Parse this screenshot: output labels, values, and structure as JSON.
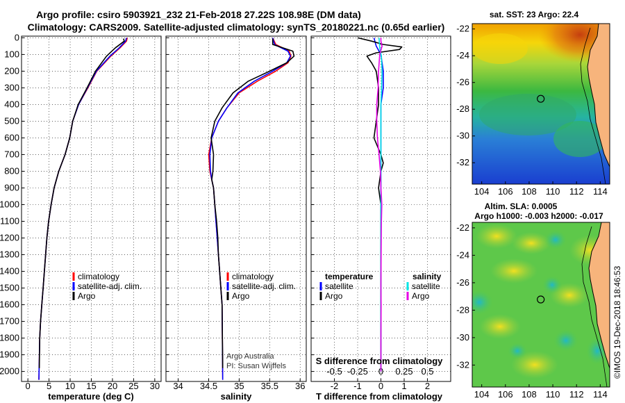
{
  "header": {
    "title_line1": "Argo profile: csiro 5903921_232 21-Feb-2018 27.22S 108.98E (DM data)",
    "title_line2": "Climatology: CARS2009. Satellite-adjusted climatology: synTS_20180221.nc (0.65d earlier)"
  },
  "colors": {
    "climatology": "#ff0000",
    "satellite_adj": "#0000ff",
    "argo": "#000000",
    "satellite_diff": "#00e5e5",
    "argo_salinity_diff": "#e600e6"
  },
  "chart_data": [
    {
      "id": "temperature",
      "type": "line",
      "xlabel": "temperature (deg C)",
      "ylabel": "",
      "xlim": [
        -1.5,
        31.5
      ],
      "ylim": [
        2060,
        -10
      ],
      "xticks": [
        "0",
        "5",
        "10",
        "15",
        "20",
        "25",
        "30"
      ],
      "xtick_values": [
        0,
        5,
        10,
        15,
        20,
        25,
        30
      ],
      "yticks": [
        "0",
        "100",
        "200",
        "300",
        "400",
        "500",
        "600",
        "700",
        "800",
        "900",
        "1000",
        "1100",
        "1200",
        "1300",
        "1400",
        "1500",
        "1600",
        "1700",
        "1800",
        "1900",
        "2000"
      ],
      "ytick_values": [
        0,
        100,
        200,
        300,
        400,
        500,
        600,
        700,
        800,
        900,
        1000,
        1100,
        1200,
        1300,
        1400,
        1500,
        1600,
        1700,
        1800,
        1900,
        2000
      ],
      "grid": true,
      "legend": {
        "placement": "lower-middle",
        "entries": [
          "climatology",
          "satellite-adj. clim.",
          "Argo"
        ]
      },
      "series": [
        {
          "name": "climatology",
          "color": "#ff0000",
          "x": [
            23.5,
            23.3,
            21.8,
            19.6,
            16.3,
            14.2,
            12.0,
            10.6,
            9.9,
            8.8,
            7.3,
            6.2,
            5.5,
            4.9,
            4.5,
            4.2,
            3.9,
            3.6,
            3.3,
            3.0,
            2.8,
            2.6
          ],
          "y": [
            0,
            20,
            60,
            110,
            200,
            300,
            400,
            500,
            600,
            700,
            800,
            900,
            1000,
            1100,
            1200,
            1300,
            1400,
            1500,
            1600,
            1700,
            1800,
            2050
          ]
        },
        {
          "name": "satellite-adj. clim.",
          "color": "#0000ff",
          "x": [
            23.3,
            23.1,
            21.6,
            19.4,
            16.2,
            14.1,
            12.0,
            10.6,
            9.9,
            8.8,
            7.3,
            6.2,
            5.5,
            4.9,
            4.5,
            4.2,
            3.9,
            3.6,
            3.3,
            3.0,
            2.8,
            2.6
          ],
          "y": [
            0,
            20,
            60,
            110,
            200,
            300,
            400,
            500,
            600,
            700,
            800,
            900,
            1000,
            1100,
            1200,
            1300,
            1400,
            1500,
            1600,
            1700,
            1800,
            2050
          ]
        },
        {
          "name": "Argo",
          "color": "#000000",
          "x": [
            22.6,
            22.8,
            20.7,
            18.6,
            16.0,
            14.0,
            11.9,
            10.6,
            9.9,
            8.8,
            7.3,
            6.2,
            5.5,
            4.9,
            4.5,
            4.2,
            3.9,
            3.6,
            3.3,
            3.0,
            2.8,
            2.7
          ],
          "y": [
            5,
            20,
            60,
            110,
            200,
            300,
            400,
            500,
            600,
            700,
            800,
            900,
            1000,
            1100,
            1200,
            1300,
            1400,
            1500,
            1600,
            1700,
            1800,
            1980
          ]
        }
      ]
    },
    {
      "id": "salinity",
      "type": "line",
      "xlabel": "salinity",
      "ylabel": "",
      "xlim": [
        33.8,
        36.1
      ],
      "ylim": [
        2060,
        -10
      ],
      "xticks": [
        "34",
        "34.5",
        "35",
        "35.5",
        "36"
      ],
      "xtick_values": [
        34,
        34.5,
        35,
        35.5,
        36
      ],
      "grid": true,
      "legend": {
        "placement": "lower-middle",
        "entries": [
          "climatology",
          "satellite-adj. clim.",
          "Argo"
        ]
      },
      "series": [
        {
          "name": "climatology",
          "color": "#ff0000",
          "x": [
            35.55,
            35.6,
            35.82,
            35.85,
            35.8,
            35.6,
            35.3,
            35.0,
            34.8,
            34.66,
            34.55,
            34.5,
            34.52,
            34.55,
            34.58,
            34.6,
            34.62,
            34.64,
            34.66,
            34.68,
            34.7,
            34.72,
            34.73
          ],
          "y": [
            0,
            40,
            80,
            110,
            150,
            200,
            260,
            330,
            420,
            500,
            600,
            700,
            800,
            850,
            900,
            1000,
            1100,
            1200,
            1300,
            1400,
            1500,
            1600,
            2050
          ]
        },
        {
          "name": "satellite-adj. clim.",
          "color": "#0000ff",
          "x": [
            35.55,
            35.58,
            35.8,
            35.84,
            35.78,
            35.55,
            35.25,
            34.98,
            34.8,
            34.66,
            34.55,
            34.52,
            34.53,
            34.55,
            34.58,
            34.6,
            34.62,
            34.64,
            34.66,
            34.68,
            34.7,
            34.72,
            34.73
          ],
          "y": [
            0,
            40,
            80,
            110,
            150,
            200,
            260,
            330,
            420,
            500,
            600,
            700,
            800,
            850,
            900,
            1000,
            1100,
            1200,
            1300,
            1400,
            1500,
            1600,
            2050
          ]
        },
        {
          "name": "Argo",
          "color": "#000000",
          "x": [
            35.55,
            35.55,
            35.88,
            35.9,
            35.78,
            35.5,
            35.15,
            34.9,
            34.72,
            34.6,
            34.54,
            34.58,
            34.57,
            34.55,
            34.58,
            34.6,
            34.63,
            34.65,
            34.66,
            34.68,
            34.7,
            34.72,
            34.73
          ],
          "y": [
            5,
            40,
            80,
            110,
            150,
            200,
            260,
            330,
            420,
            500,
            600,
            700,
            800,
            850,
            900,
            1000,
            1100,
            1200,
            1300,
            1400,
            1500,
            1600,
            1980
          ]
        }
      ],
      "annotations": [
        "Argo Australia",
        "PI: Susan Wijffels"
      ]
    },
    {
      "id": "difference",
      "type": "line",
      "xlabel": "T difference from climatology",
      "top_label": "S difference from climatology",
      "ylabel": "",
      "xlim": [
        -3,
        3
      ],
      "ylim": [
        2060,
        -10
      ],
      "xticks": [
        "-2",
        "-1",
        "0",
        "1",
        "2"
      ],
      "xtick_values": [
        -2,
        -1,
        0,
        1,
        2
      ],
      "sticks": [
        "-0.5",
        "-0.25",
        "0",
        "0.25",
        "0.5"
      ],
      "stick_values_in_t_units": [
        -2,
        -1,
        0,
        1,
        2
      ],
      "grid": true,
      "legend": {
        "placement": "lower-middle",
        "temperature_heading": "temperature",
        "salinity_heading": "salinity",
        "temperature_entries": [
          "satellite",
          "Argo"
        ],
        "salinity_entries": [
          "satellite",
          "Argo"
        ]
      },
      "series": [
        {
          "name": "temperature satellite",
          "color": "#0000ff",
          "x": [
            -0.3,
            -0.2,
            0,
            0.1,
            0.1,
            0,
            0,
            0,
            0,
            0,
            0,
            0,
            0,
            0,
            0
          ],
          "y": [
            0,
            50,
            100,
            200,
            300,
            400,
            500,
            600,
            700,
            800,
            900,
            1000,
            1200,
            1500,
            2000
          ]
        },
        {
          "name": "temperature Argo",
          "color": "#000000",
          "x": [
            -1.0,
            -0.4,
            0.1,
            0.9,
            0.8,
            -0.2,
            -0.6,
            -0.4,
            -0.2,
            -0.1,
            -0.1,
            -0.2,
            -0.3,
            0,
            0.1,
            0,
            -0.1,
            0,
            0,
            0,
            0,
            0
          ],
          "y": [
            0,
            20,
            40,
            55,
            70,
            90,
            110,
            150,
            200,
            300,
            400,
            500,
            600,
            700,
            750,
            800,
            900,
            1000,
            1100,
            1300,
            1600,
            2000
          ]
        },
        {
          "name": "salinity satellite",
          "color": "#00e5e5",
          "x": [
            -0.08,
            -0.05,
            0.02,
            0.05,
            0.03,
            0,
            0,
            0,
            0,
            0,
            0,
            0,
            0,
            0,
            0,
            0,
            0,
            0
          ],
          "y": [
            0,
            60,
            110,
            200,
            300,
            400,
            500,
            600,
            700,
            800,
            900,
            1000,
            1200,
            1400,
            1500,
            1600,
            1800,
            2000
          ]
        },
        {
          "name": "salinity Argo",
          "color": "#e600e6",
          "x": [
            0,
            0,
            0.05,
            -0.05,
            -0.1,
            -0.12,
            -0.18,
            -0.18,
            -0.15,
            -0.08,
            -0.02,
            0,
            0.02,
            0.04,
            0.03,
            0.02,
            0.01,
            0,
            0.01,
            0,
            0
          ],
          "y": [
            0,
            20,
            50,
            100,
            200,
            300,
            400,
            500,
            600,
            700,
            800,
            900,
            950,
            1000,
            1050,
            1100,
            1300,
            1500,
            1600,
            1800,
            2000
          ]
        }
      ]
    }
  ],
  "maps": {
    "sst": {
      "title": "sat. SST: 23 Argo: 22.4",
      "lon_ticks": [
        "104",
        "106",
        "108",
        "110",
        "112",
        "114"
      ],
      "lon_values": [
        104,
        106,
        108,
        110,
        112,
        114
      ],
      "lat_ticks": [
        "-22",
        "-24",
        "-26",
        "-28",
        "-30",
        "-32"
      ],
      "lat_values": [
        -22,
        -24,
        -26,
        -28,
        -30,
        -32
      ],
      "lon_range": [
        103.2,
        114.8
      ],
      "lat_range": [
        -33.6,
        -21.6
      ],
      "float_position": {
        "lon": 108.98,
        "lat": -27.22
      }
    },
    "sla": {
      "title_line1": "Altim. SLA: 0.0005",
      "title_line2": "Argo h1000: -0.003 h2000: -0.017",
      "lon_ticks": [
        "104",
        "106",
        "108",
        "110",
        "112",
        "114"
      ],
      "lon_values": [
        104,
        106,
        108,
        110,
        112,
        114
      ],
      "lat_ticks": [
        "-22",
        "-24",
        "-26",
        "-28",
        "-30",
        "-32"
      ],
      "lat_values": [
        -22,
        -24,
        -26,
        -28,
        -30,
        -32
      ],
      "lon_range": [
        103.2,
        114.8
      ],
      "lat_range": [
        -33.6,
        -21.6
      ],
      "float_position": {
        "lon": 108.98,
        "lat": -27.22
      }
    }
  },
  "credit": "©IMOS 19-Dec-2018 18:46:53"
}
